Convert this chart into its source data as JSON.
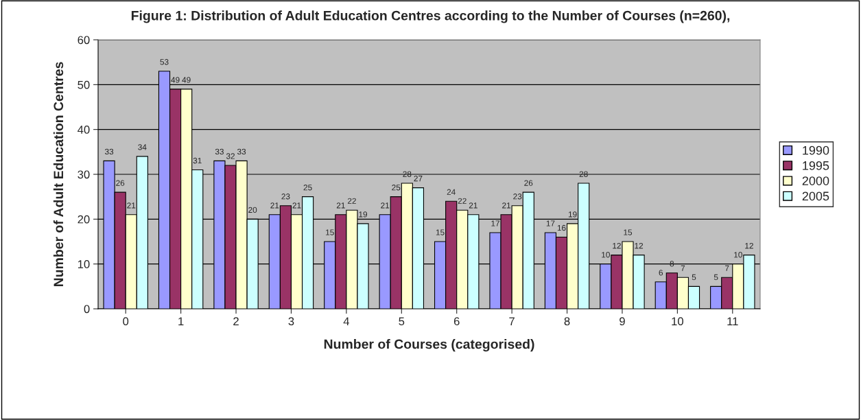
{
  "chart_data": {
    "type": "bar",
    "title": "Figure 1: Distribution of Adult Education Centres according to the Number of Courses (n=260),",
    "xlabel": "Number of Courses (categorised)",
    "ylabel": "Number of Adult Education Centres",
    "categories": [
      "0",
      "1",
      "2",
      "3",
      "4",
      "5",
      "6",
      "7",
      "8",
      "9",
      "10",
      "11"
    ],
    "series": [
      {
        "name": "1990",
        "color": "#9999ff",
        "values": [
          33,
          53,
          33,
          21,
          15,
          21,
          15,
          17,
          17,
          10,
          6,
          5
        ]
      },
      {
        "name": "1995",
        "color": "#993366",
        "values": [
          26,
          49,
          32,
          23,
          21,
          25,
          24,
          21,
          16,
          12,
          8,
          7
        ]
      },
      {
        "name": "2000",
        "color": "#ffffcc",
        "values": [
          21,
          49,
          33,
          21,
          22,
          28,
          22,
          23,
          19,
          15,
          7,
          10
        ]
      },
      {
        "name": "2005",
        "color": "#ccffff",
        "values": [
          34,
          31,
          20,
          25,
          19,
          27,
          21,
          26,
          28,
          12,
          5,
          12
        ]
      }
    ],
    "ylim": [
      0,
      60
    ],
    "yticks": [
      0,
      10,
      20,
      30,
      40,
      50,
      60
    ],
    "grid": "y",
    "legend": "right",
    "data_labels": true
  }
}
